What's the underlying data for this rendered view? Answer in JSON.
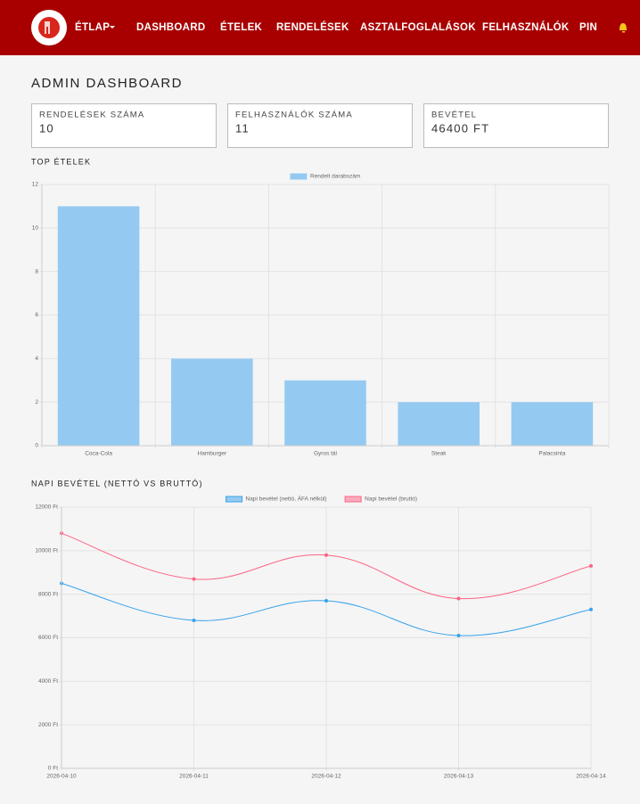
{
  "nav": {
    "items": [
      "ÉTLAP",
      "DASHBOARD",
      "ÉTELEK",
      "RENDELÉSEK",
      "ASZTALFOGLALÁSOK",
      "FELHASZNÁLÓK",
      "PIN"
    ]
  },
  "page": {
    "title": "ADMIN DASHBOARD"
  },
  "cards": [
    {
      "label": "RENDELÉSEK SZÁMA",
      "value": 10
    },
    {
      "label": "FELHASZNÁLÓK SZÁMA",
      "value": 11
    },
    {
      "label": "BEVÉTEL",
      "value": "46400 FT"
    }
  ],
  "chart_data": [
    {
      "type": "bar",
      "title": "TOP ÉTELEK",
      "categories": [
        "Coca-Cola",
        "Hamburger",
        "Gyros tál",
        "Steak",
        "Palacsinta"
      ],
      "series": [
        {
          "name": "Rendelt darabszám",
          "color": "#94caf2",
          "values": [
            11,
            4,
            3,
            2,
            2
          ]
        }
      ],
      "ylim": [
        0,
        12
      ],
      "yticks": [
        0,
        2,
        4,
        6,
        8,
        10,
        12
      ],
      "grid": true,
      "legend": "top"
    },
    {
      "type": "line",
      "title": "NAPI BEVÉTEL (NETTÓ VS BRUTTÓ)",
      "categories": [
        "2026-04-10",
        "2026-04-11",
        "2026-04-12",
        "2026-04-13",
        "2026-04-14"
      ],
      "series": [
        {
          "name": "Napi bevétel (nettó, ÁFA nélkül)",
          "color": "#36a2eb",
          "values": [
            8500,
            6800,
            7700,
            6100,
            7300
          ]
        },
        {
          "name": "Napi bevétel (bruttó)",
          "color": "#ff6384",
          "values": [
            10800,
            8700,
            9800,
            7800,
            9300
          ]
        }
      ],
      "ylim": [
        0,
        12000
      ],
      "yticks": [
        {
          "value": 0,
          "label": "0 Ft"
        },
        {
          "value": 2000,
          "label": "2000 Ft"
        },
        {
          "value": 4000,
          "label": "4000 Ft"
        },
        {
          "value": 6000,
          "label": "6000 Ft"
        },
        {
          "value": 8000,
          "label": "8000 Ft"
        },
        {
          "value": 10000,
          "label": "10000 Ft"
        },
        {
          "value": 12000,
          "label": "12000 Ft"
        }
      ],
      "grid": true,
      "legend": "top"
    }
  ]
}
